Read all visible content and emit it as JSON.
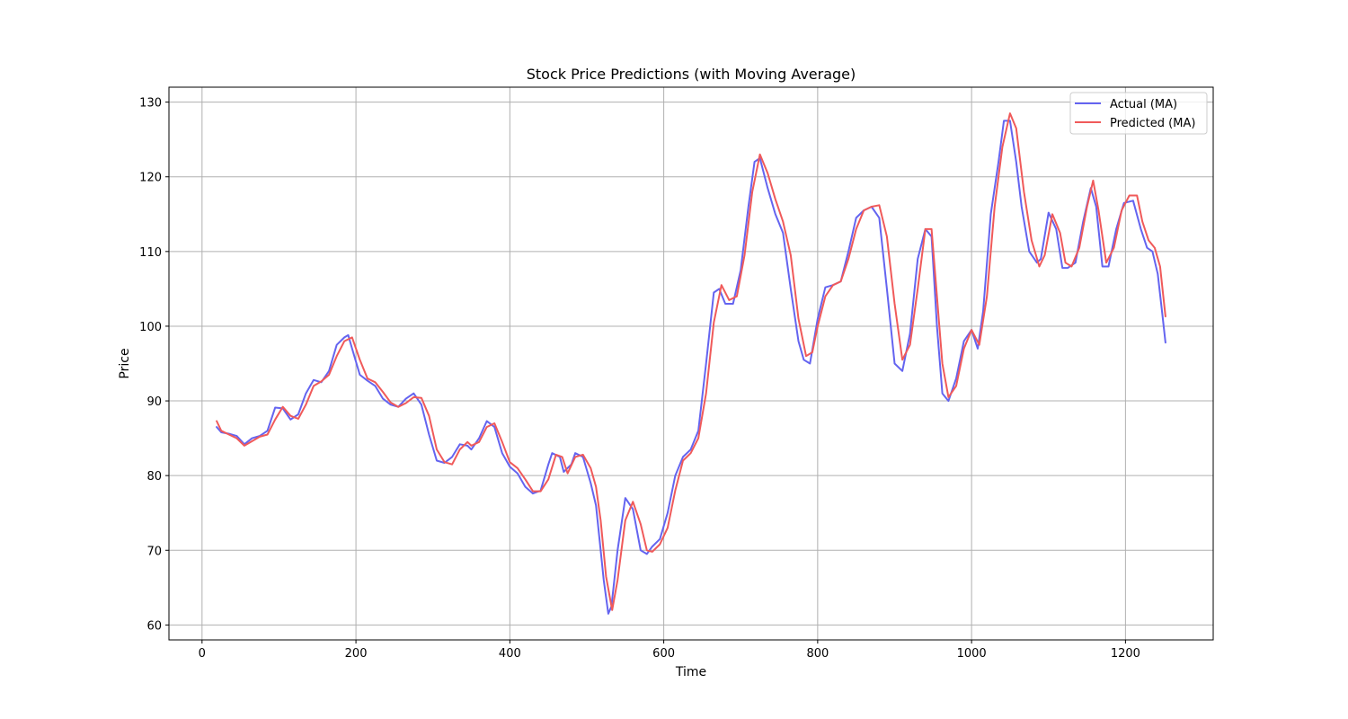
{
  "chart_data": {
    "type": "line",
    "title": "Stock Price Predictions (with Moving Average)",
    "xlabel": "Time",
    "ylabel": "Price",
    "xlim": [
      -43,
      1314
    ],
    "ylim": [
      58,
      132
    ],
    "xticks": [
      0,
      200,
      400,
      600,
      800,
      1000,
      1200
    ],
    "yticks": [
      60,
      70,
      80,
      90,
      100,
      110,
      120,
      130
    ],
    "grid": true,
    "legend_position": "top-right",
    "series": [
      {
        "name": "Actual (MA)",
        "color": "#6464f0",
        "points": [
          [
            19,
            86.5
          ],
          [
            25,
            85.8
          ],
          [
            35,
            85.6
          ],
          [
            45,
            85.3
          ],
          [
            55,
            84.2
          ],
          [
            65,
            85.0
          ],
          [
            75,
            85.3
          ],
          [
            85,
            86.0
          ],
          [
            95,
            89.1
          ],
          [
            105,
            89.0
          ],
          [
            115,
            87.5
          ],
          [
            125,
            88.2
          ],
          [
            135,
            91.0
          ],
          [
            145,
            92.8
          ],
          [
            155,
            92.5
          ],
          [
            165,
            94.0
          ],
          [
            175,
            97.5
          ],
          [
            185,
            98.5
          ],
          [
            190,
            98.8
          ],
          [
            195,
            97.0
          ],
          [
            205,
            93.5
          ],
          [
            215,
            92.7
          ],
          [
            225,
            92.0
          ],
          [
            235,
            90.3
          ],
          [
            245,
            89.5
          ],
          [
            255,
            89.2
          ],
          [
            265,
            90.3
          ],
          [
            275,
            91.0
          ],
          [
            285,
            89.5
          ],
          [
            295,
            85.5
          ],
          [
            305,
            82.0
          ],
          [
            315,
            81.7
          ],
          [
            325,
            82.5
          ],
          [
            335,
            84.2
          ],
          [
            345,
            84.0
          ],
          [
            350,
            83.5
          ],
          [
            360,
            85.0
          ],
          [
            370,
            87.3
          ],
          [
            380,
            86.5
          ],
          [
            390,
            83.0
          ],
          [
            400,
            81.2
          ],
          [
            410,
            80.3
          ],
          [
            420,
            78.5
          ],
          [
            430,
            77.6
          ],
          [
            440,
            78.0
          ],
          [
            450,
            81.5
          ],
          [
            455,
            83.0
          ],
          [
            465,
            82.5
          ],
          [
            470,
            80.5
          ],
          [
            480,
            81.5
          ],
          [
            485,
            83.0
          ],
          [
            495,
            82.5
          ],
          [
            505,
            79.0
          ],
          [
            512,
            76.0
          ],
          [
            518,
            70.0
          ],
          [
            522,
            66.0
          ],
          [
            528,
            61.5
          ],
          [
            532,
            62.5
          ],
          [
            540,
            70.0
          ],
          [
            550,
            77.0
          ],
          [
            560,
            75.5
          ],
          [
            570,
            70.0
          ],
          [
            578,
            69.5
          ],
          [
            585,
            70.5
          ],
          [
            595,
            71.5
          ],
          [
            605,
            75.0
          ],
          [
            615,
            80.0
          ],
          [
            625,
            82.5
          ],
          [
            635,
            83.5
          ],
          [
            645,
            86.0
          ],
          [
            655,
            95.0
          ],
          [
            665,
            104.5
          ],
          [
            672,
            105.0
          ],
          [
            680,
            103.0
          ],
          [
            690,
            103.0
          ],
          [
            700,
            107.5
          ],
          [
            710,
            116.0
          ],
          [
            718,
            122.0
          ],
          [
            725,
            122.5
          ],
          [
            735,
            118.5
          ],
          [
            745,
            115.0
          ],
          [
            755,
            112.5
          ],
          [
            765,
            105.0
          ],
          [
            775,
            98.0
          ],
          [
            782,
            95.5
          ],
          [
            790,
            95.0
          ],
          [
            800,
            101.0
          ],
          [
            810,
            105.2
          ],
          [
            820,
            105.5
          ],
          [
            830,
            106.0
          ],
          [
            840,
            110.0
          ],
          [
            850,
            114.5
          ],
          [
            860,
            115.5
          ],
          [
            870,
            116.0
          ],
          [
            880,
            114.5
          ],
          [
            890,
            105.0
          ],
          [
            900,
            95.0
          ],
          [
            910,
            94.0
          ],
          [
            920,
            99.0
          ],
          [
            930,
            109.0
          ],
          [
            940,
            113.0
          ],
          [
            948,
            112.0
          ],
          [
            955,
            100.0
          ],
          [
            962,
            91.0
          ],
          [
            970,
            90.0
          ],
          [
            980,
            93.0
          ],
          [
            990,
            98.0
          ],
          [
            1000,
            99.5
          ],
          [
            1008,
            97.0
          ],
          [
            1015,
            102.0
          ],
          [
            1025,
            115.0
          ],
          [
            1035,
            122.0
          ],
          [
            1042,
            127.5
          ],
          [
            1050,
            127.5
          ],
          [
            1058,
            122.0
          ],
          [
            1065,
            116.0
          ],
          [
            1075,
            110.0
          ],
          [
            1085,
            108.5
          ],
          [
            1090,
            109.0
          ],
          [
            1100,
            115.2
          ],
          [
            1110,
            113.0
          ],
          [
            1118,
            107.8
          ],
          [
            1125,
            107.8
          ],
          [
            1135,
            108.5
          ],
          [
            1145,
            114.0
          ],
          [
            1155,
            118.5
          ],
          [
            1162,
            116.0
          ],
          [
            1170,
            108.0
          ],
          [
            1178,
            108.0
          ],
          [
            1188,
            113.0
          ],
          [
            1198,
            116.5
          ],
          [
            1210,
            116.8
          ],
          [
            1220,
            113.0
          ],
          [
            1228,
            110.5
          ],
          [
            1235,
            110.0
          ],
          [
            1242,
            107.0
          ],
          [
            1248,
            101.5
          ],
          [
            1252,
            97.8
          ]
        ]
      },
      {
        "name": "Predicted (MA)",
        "color": "#f05a5a",
        "points": [
          [
            19,
            87.3
          ],
          [
            25,
            86.0
          ],
          [
            35,
            85.5
          ],
          [
            45,
            85.0
          ],
          [
            55,
            84.0
          ],
          [
            65,
            84.6
          ],
          [
            75,
            85.2
          ],
          [
            85,
            85.5
          ],
          [
            95,
            87.5
          ],
          [
            105,
            89.2
          ],
          [
            115,
            88.0
          ],
          [
            125,
            87.6
          ],
          [
            135,
            89.5
          ],
          [
            145,
            92.0
          ],
          [
            155,
            92.6
          ],
          [
            165,
            93.5
          ],
          [
            175,
            96.0
          ],
          [
            185,
            98.0
          ],
          [
            195,
            98.5
          ],
          [
            205,
            95.5
          ],
          [
            215,
            93.0
          ],
          [
            225,
            92.5
          ],
          [
            235,
            91.2
          ],
          [
            245,
            89.8
          ],
          [
            255,
            89.2
          ],
          [
            265,
            89.7
          ],
          [
            275,
            90.5
          ],
          [
            285,
            90.4
          ],
          [
            295,
            88.0
          ],
          [
            305,
            83.5
          ],
          [
            315,
            81.8
          ],
          [
            325,
            81.5
          ],
          [
            335,
            83.5
          ],
          [
            345,
            84.5
          ],
          [
            350,
            84.0
          ],
          [
            360,
            84.5
          ],
          [
            370,
            86.5
          ],
          [
            380,
            87.0
          ],
          [
            390,
            84.5
          ],
          [
            400,
            81.8
          ],
          [
            410,
            81.0
          ],
          [
            420,
            79.5
          ],
          [
            430,
            77.9
          ],
          [
            440,
            77.9
          ],
          [
            450,
            79.5
          ],
          [
            460,
            82.8
          ],
          [
            468,
            82.5
          ],
          [
            475,
            80.3
          ],
          [
            485,
            82.5
          ],
          [
            495,
            82.8
          ],
          [
            505,
            81.0
          ],
          [
            512,
            78.5
          ],
          [
            518,
            74.0
          ],
          [
            525,
            66.5
          ],
          [
            533,
            62.0
          ],
          [
            540,
            66.0
          ],
          [
            550,
            74.0
          ],
          [
            560,
            76.5
          ],
          [
            570,
            73.5
          ],
          [
            578,
            70.0
          ],
          [
            585,
            69.8
          ],
          [
            595,
            70.8
          ],
          [
            605,
            73.0
          ],
          [
            615,
            78.0
          ],
          [
            625,
            82.0
          ],
          [
            635,
            83.0
          ],
          [
            645,
            85.0
          ],
          [
            655,
            91.0
          ],
          [
            665,
            100.5
          ],
          [
            675,
            105.5
          ],
          [
            685,
            103.5
          ],
          [
            695,
            104.0
          ],
          [
            705,
            109.5
          ],
          [
            715,
            118.0
          ],
          [
            725,
            123.0
          ],
          [
            735,
            120.5
          ],
          [
            745,
            117.0
          ],
          [
            755,
            114.0
          ],
          [
            765,
            109.5
          ],
          [
            775,
            101.0
          ],
          [
            785,
            96.0
          ],
          [
            793,
            96.5
          ],
          [
            800,
            100.0
          ],
          [
            810,
            104.0
          ],
          [
            820,
            105.5
          ],
          [
            830,
            106.0
          ],
          [
            840,
            109.0
          ],
          [
            850,
            113.0
          ],
          [
            860,
            115.5
          ],
          [
            870,
            116.0
          ],
          [
            880,
            116.2
          ],
          [
            890,
            112.0
          ],
          [
            900,
            103.0
          ],
          [
            910,
            95.5
          ],
          [
            920,
            97.5
          ],
          [
            930,
            105.0
          ],
          [
            940,
            113.0
          ],
          [
            948,
            113.0
          ],
          [
            955,
            104.0
          ],
          [
            962,
            95.0
          ],
          [
            970,
            90.5
          ],
          [
            980,
            92.0
          ],
          [
            990,
            97.0
          ],
          [
            1000,
            99.5
          ],
          [
            1010,
            97.5
          ],
          [
            1020,
            104.0
          ],
          [
            1030,
            116.0
          ],
          [
            1040,
            124.0
          ],
          [
            1050,
            128.5
          ],
          [
            1058,
            126.5
          ],
          [
            1068,
            118.0
          ],
          [
            1078,
            111.5
          ],
          [
            1088,
            108.0
          ],
          [
            1095,
            109.5
          ],
          [
            1105,
            115.0
          ],
          [
            1115,
            112.5
          ],
          [
            1122,
            108.5
          ],
          [
            1130,
            108.0
          ],
          [
            1140,
            110.5
          ],
          [
            1150,
            116.0
          ],
          [
            1158,
            119.5
          ],
          [
            1165,
            115.5
          ],
          [
            1175,
            108.5
          ],
          [
            1185,
            110.5
          ],
          [
            1195,
            115.5
          ],
          [
            1205,
            117.5
          ],
          [
            1215,
            117.5
          ],
          [
            1222,
            114.0
          ],
          [
            1230,
            111.5
          ],
          [
            1238,
            110.5
          ],
          [
            1245,
            108.0
          ],
          [
            1252,
            101.3
          ]
        ]
      }
    ]
  }
}
